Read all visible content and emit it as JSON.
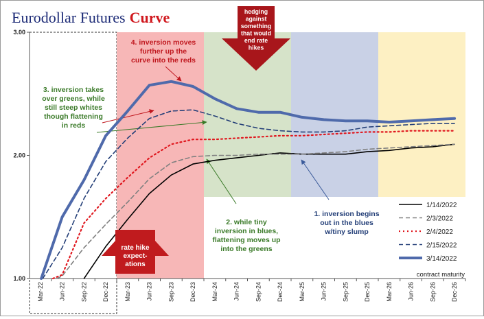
{
  "chart_data": {
    "type": "line",
    "title_main": "Eurodollar Futures",
    "title_accent": "Curve",
    "xlabel": "contract maturity",
    "ylabel": "",
    "ylim": [
      1.0,
      3.0
    ],
    "yticks": [
      "1.00",
      "2.00",
      "3.00"
    ],
    "log_scale": false,
    "grid": false,
    "legend_position": "bottom-right",
    "categories": [
      "Mar-22",
      "Jun-22",
      "Sep-22",
      "Dec-22",
      "Mar-23",
      "Jun-23",
      "Sep-23",
      "Dec-23",
      "Mar-24",
      "Jun-24",
      "Sep-24",
      "Dec-24",
      "Mar-25",
      "Jun-25",
      "Sep-25",
      "Dec-25",
      "Mar-26",
      "Jun-26",
      "Sep-26",
      "Dec-26"
    ],
    "bands": [
      {
        "name": "whites",
        "from": "Mar-22",
        "to": "Dec-22",
        "style": "dashed-box"
      },
      {
        "name": "reds",
        "from": "Mar-23",
        "to": "Dec-23",
        "color": "#f7b7b7"
      },
      {
        "name": "greens",
        "from": "Mar-24",
        "to": "Dec-24",
        "color": "#d6e3c9"
      },
      {
        "name": "blues",
        "from": "Mar-25",
        "to": "Dec-25",
        "color": "#c9d1e6"
      },
      {
        "name": "golds",
        "from": "Mar-26",
        "to": "Dec-26",
        "color": "#fdf0c3"
      }
    ],
    "series": [
      {
        "name": "1/14/2022",
        "color": "#000000",
        "dash": "solid",
        "width": 1.6,
        "values": [
          0.92,
          0.97,
          1.0,
          1.26,
          1.48,
          1.69,
          1.84,
          1.93,
          1.96,
          1.98,
          2.0,
          2.02,
          2.01,
          2.01,
          2.01,
          2.03,
          2.04,
          2.06,
          2.07,
          2.09
        ]
      },
      {
        "name": "2/3/2022",
        "color": "#808080",
        "dash": "dashed",
        "width": 1.6,
        "values": [
          0.94,
          1.02,
          1.25,
          1.44,
          1.62,
          1.81,
          1.94,
          1.99,
          2.0,
          2.0,
          2.01,
          2.01,
          2.01,
          2.02,
          2.03,
          2.05,
          2.06,
          2.07,
          2.08,
          2.09
        ]
      },
      {
        "name": "2/4/2022",
        "color": "#e0181f",
        "dash": "dotted",
        "width": 2.2,
        "values": [
          0.96,
          1.03,
          1.45,
          1.65,
          1.82,
          1.98,
          2.09,
          2.13,
          2.13,
          2.14,
          2.15,
          2.16,
          2.16,
          2.17,
          2.18,
          2.19,
          2.19,
          2.2,
          2.2,
          2.2
        ]
      },
      {
        "name": "2/15/2022",
        "color": "#243f78",
        "dash": "dashed",
        "width": 1.6,
        "values": [
          0.97,
          1.25,
          1.65,
          1.95,
          2.14,
          2.3,
          2.36,
          2.37,
          2.32,
          2.26,
          2.22,
          2.2,
          2.19,
          2.19,
          2.2,
          2.23,
          2.24,
          2.25,
          2.26,
          2.26
        ]
      },
      {
        "name": "3/14/2022",
        "color": "#4f6aab",
        "dash": "solid",
        "width": 4,
        "values": [
          0.98,
          1.5,
          1.8,
          2.16,
          2.36,
          2.57,
          2.6,
          2.56,
          2.46,
          2.38,
          2.35,
          2.35,
          2.31,
          2.29,
          2.28,
          2.28,
          2.27,
          2.28,
          2.29,
          2.3
        ]
      }
    ],
    "annotations": [
      {
        "key": "inversion_moves",
        "color": "#c0181f",
        "lines": [
          "4. inversion moves",
          "further up the",
          "curve into the reds"
        ]
      },
      {
        "key": "inversion_greens",
        "color": "#3a7a28",
        "lines": [
          "3. inversion takes",
          "over greens, while",
          "still steep whites",
          "though flattening",
          "in reds"
        ]
      },
      {
        "key": "tiny_inversion",
        "color": "#3a7a28",
        "lines": [
          "2. while tiny",
          "inversion in blues,",
          "flattening moves up",
          "into the greens"
        ]
      },
      {
        "key": "inversion_blues",
        "color": "#243f78",
        "lines": [
          "1. inversion begins",
          "out in the blues",
          "w/tiny slump"
        ]
      },
      {
        "key": "hedging",
        "color": "#ffffff",
        "lines": [
          "hedging",
          "against",
          "something",
          "that would",
          "end rate",
          "hikes"
        ]
      },
      {
        "key": "rate_hike",
        "color": "#ffffff",
        "lines": [
          "rate hike",
          "expect-",
          "ations"
        ]
      }
    ]
  }
}
